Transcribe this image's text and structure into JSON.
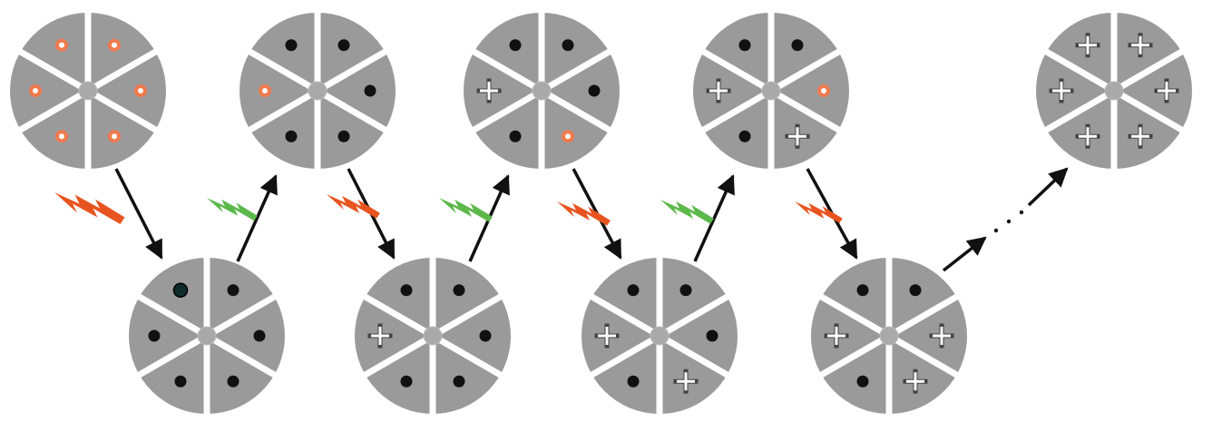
{
  "colors": {
    "disk": "#9a9a9a",
    "divider": "#ffffff",
    "hub": "#a9a9a9",
    "dot_black": "#111111",
    "dot_orange_ring": "#ee7a4e",
    "dot_dark_teal": "#0f2b2b",
    "plus": "#ffffff",
    "arrow": "#111111",
    "bolt_orange": "#e8541f",
    "bolt_green": "#5cb84a"
  },
  "icons": {
    "disk": "sectored-disk-icon",
    "black_dot": "filled-dot-icon",
    "orange_dot": "ringed-dot-icon",
    "plus": "plus-icon",
    "orange_bolt": "orange-lightning-icon",
    "green_bolt": "green-lightning-icon",
    "arrow": "transition-arrow-icon",
    "dots": "ellipsis-icon"
  },
  "disks": [
    {
      "id": "top-1",
      "sectors": [
        "orange",
        "orange",
        "orange",
        "orange",
        "orange",
        "orange"
      ]
    },
    {
      "id": "bottom-1",
      "sectors": [
        "black",
        "black",
        "black",
        "black",
        "black",
        "teal"
      ]
    },
    {
      "id": "top-2",
      "sectors": [
        "black",
        "black",
        "black",
        "black",
        "orange",
        "black"
      ]
    },
    {
      "id": "bottom-2",
      "sectors": [
        "black",
        "black",
        "black",
        "black",
        "plus",
        "black"
      ]
    },
    {
      "id": "top-3",
      "sectors": [
        "black",
        "black",
        "orange",
        "black",
        "plus",
        "black"
      ]
    },
    {
      "id": "bottom-3",
      "sectors": [
        "black",
        "black",
        "plus",
        "black",
        "plus",
        "black"
      ]
    },
    {
      "id": "top-4",
      "sectors": [
        "black",
        "orange",
        "plus",
        "black",
        "plus",
        "black"
      ]
    },
    {
      "id": "bottom-4",
      "sectors": [
        "black",
        "plus",
        "plus",
        "black",
        "plus",
        "black"
      ]
    },
    {
      "id": "top-5",
      "sectors": [
        "plus",
        "plus",
        "plus",
        "plus",
        "plus",
        "plus"
      ]
    }
  ],
  "bolts": [
    {
      "id": "bolt-1",
      "color": "orange"
    },
    {
      "id": "bolt-2",
      "color": "green"
    },
    {
      "id": "bolt-3",
      "color": "orange"
    },
    {
      "id": "bolt-4",
      "color": "green"
    },
    {
      "id": "bolt-5",
      "color": "orange"
    },
    {
      "id": "bolt-6",
      "color": "green"
    },
    {
      "id": "bolt-7",
      "color": "orange"
    }
  ]
}
